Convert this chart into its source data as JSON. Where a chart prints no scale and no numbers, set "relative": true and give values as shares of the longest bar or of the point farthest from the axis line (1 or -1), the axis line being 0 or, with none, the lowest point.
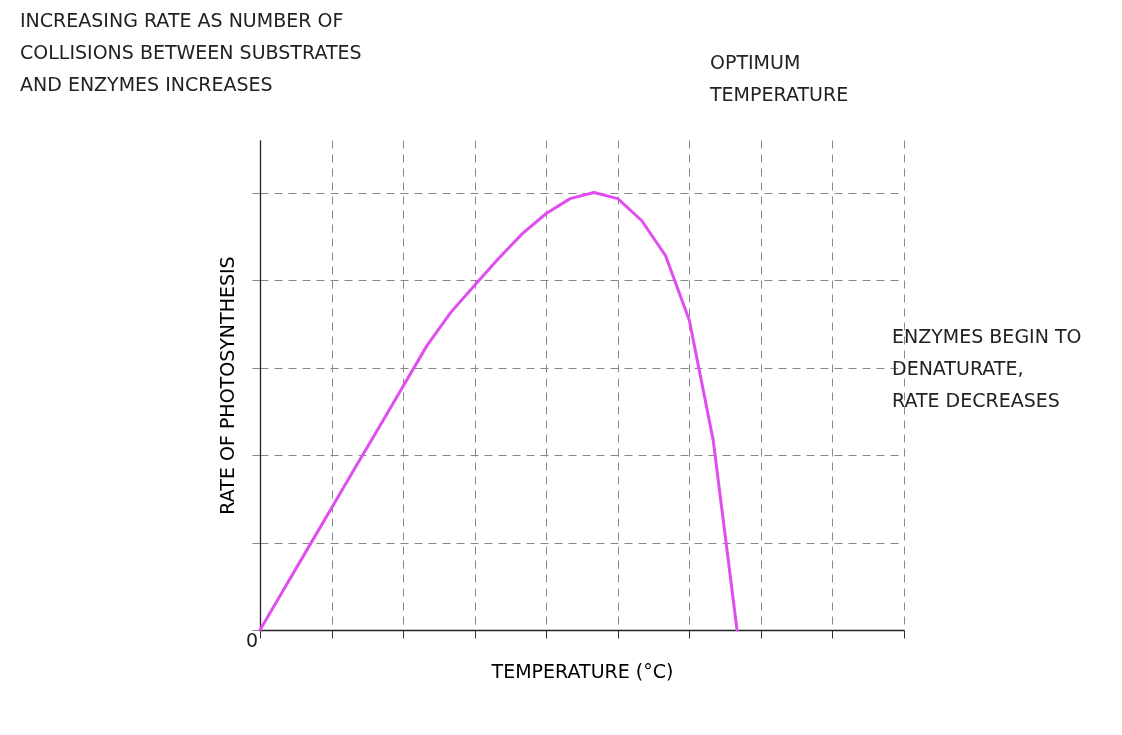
{
  "chart_data": {
    "type": "line",
    "relative": true,
    "grid": true,
    "marker": "none",
    "line_style": "solid",
    "xlabel": "TEMPERATURE (°C)",
    "ylabel": "RATE OF PHOTOSYNTHESIS",
    "categories": [
      null,
      null,
      null,
      null,
      null,
      null,
      null,
      null,
      null,
      null,
      null,
      null,
      null,
      null,
      null,
      null,
      null,
      null,
      null,
      null,
      null,
      null,
      null,
      null,
      null,
      null,
      null,
      null
    ],
    "series": [
      {
        "color": "#e04ef0",
        "values": [
          0,
          0.093,
          0.186,
          0.279,
          0.372,
          0.464,
          0.557,
          0.65,
          0.726,
          0.788,
          0.849,
          0.906,
          0.952,
          0.986,
          1,
          0.986,
          0.936,
          0.856,
          0.708,
          0.434,
          0,
          null,
          null,
          null,
          null,
          null,
          null,
          null
        ]
      }
    ],
    "annotations": [
      "INCREASING RATE AS NUMBER OF\nCOLLISIONS BETWEEN SUBSTRATES\nAND ENZYMES INCREASES",
      "OPTIMUM\nTEMPERATURE",
      "ENZYMES BEGIN TO\nDENATURATE,\nRATE DECREASES",
      "0"
    ]
  }
}
